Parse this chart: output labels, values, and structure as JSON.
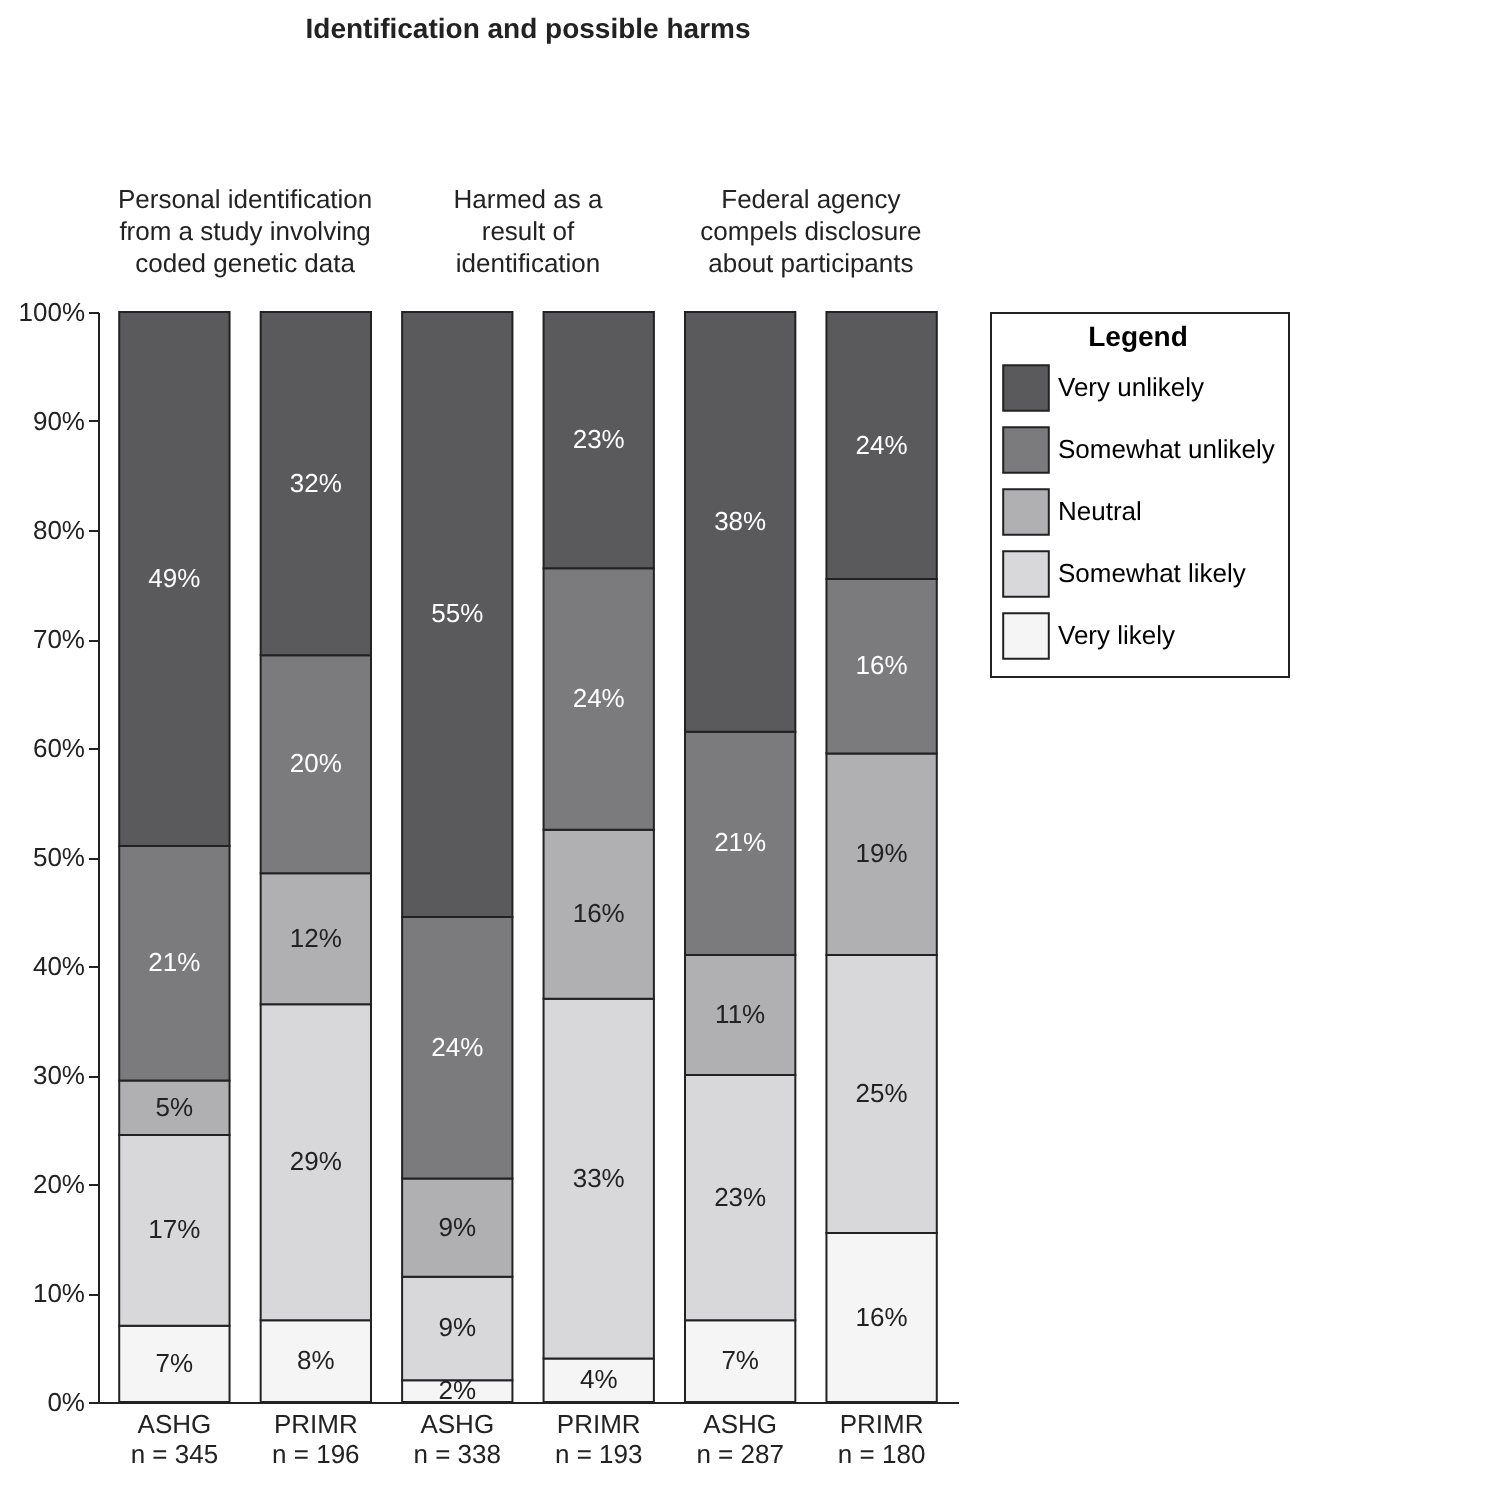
{
  "chart_data": {
    "type": "bar",
    "stacked": true,
    "title": "Identification and possible harms",
    "annotations": [
      "Personal identification\nfrom a study involving\ncoded genetic data",
      "Harmed as a\nresult of\nidentification",
      "Federal agency\ncompels disclosure\nabout participants"
    ],
    "categories": [
      "ASHG\nn = 345",
      "PRIMR\nn = 196",
      "ASHG\nn = 338",
      "PRIMR\nn = 193",
      "ASHG\nn = 287",
      "PRIMR\nn = 180"
    ],
    "ylim": [
      0,
      100
    ],
    "yticks": [
      {
        "value": 0,
        "label": "0%"
      },
      {
        "value": 10,
        "label": "10%"
      },
      {
        "value": 20,
        "label": "20%"
      },
      {
        "value": 30,
        "label": "30%"
      },
      {
        "value": 40,
        "label": "40%"
      },
      {
        "value": 50,
        "label": "50%"
      },
      {
        "value": 60,
        "label": "60%"
      },
      {
        "value": 70,
        "label": "70%"
      },
      {
        "value": 80,
        "label": "80%"
      },
      {
        "value": 90,
        "label": "90%"
      },
      {
        "value": 100,
        "label": "100%"
      }
    ],
    "grid": false,
    "legend": "right",
    "legend_title": "Legend",
    "series": [
      {
        "name": "Very likely",
        "color": "#f5f5f5",
        "values": [
          7,
          7.5,
          2,
          4,
          7.5,
          15.5
        ],
        "value_labels": [
          "7%",
          "8%",
          "2%",
          "4%",
          "7%",
          "16%"
        ]
      },
      {
        "name": "Somewhat likely",
        "color": "#d8d8da",
        "values": [
          17.5,
          29,
          9.5,
          33,
          22.5,
          25.5
        ],
        "value_labels": [
          "17%",
          "29%",
          "9%",
          "33%",
          "23%",
          "25%"
        ]
      },
      {
        "name": "Neutral",
        "color": "#b0b0b2",
        "values": [
          5,
          12,
          9,
          15.5,
          11,
          18.5
        ],
        "value_labels": [
          "5%",
          "12%",
          "9%",
          "16%",
          "11%",
          "19%"
        ]
      },
      {
        "name": "Somewhat unlikely",
        "color": "#7b7b7e",
        "values": [
          21.5,
          20,
          24,
          24,
          20.5,
          16
        ],
        "value_labels": [
          "21%",
          "20%",
          "24%",
          "24%",
          "21%",
          "16%"
        ]
      },
      {
        "name": "Very unlikely",
        "color": "#5a5a5c",
        "values": [
          49,
          31.5,
          55.5,
          23.5,
          38.5,
          24.5
        ],
        "value_labels": [
          "49%",
          "32%",
          "55%",
          "23%",
          "38%",
          "24%"
        ]
      }
    ]
  }
}
